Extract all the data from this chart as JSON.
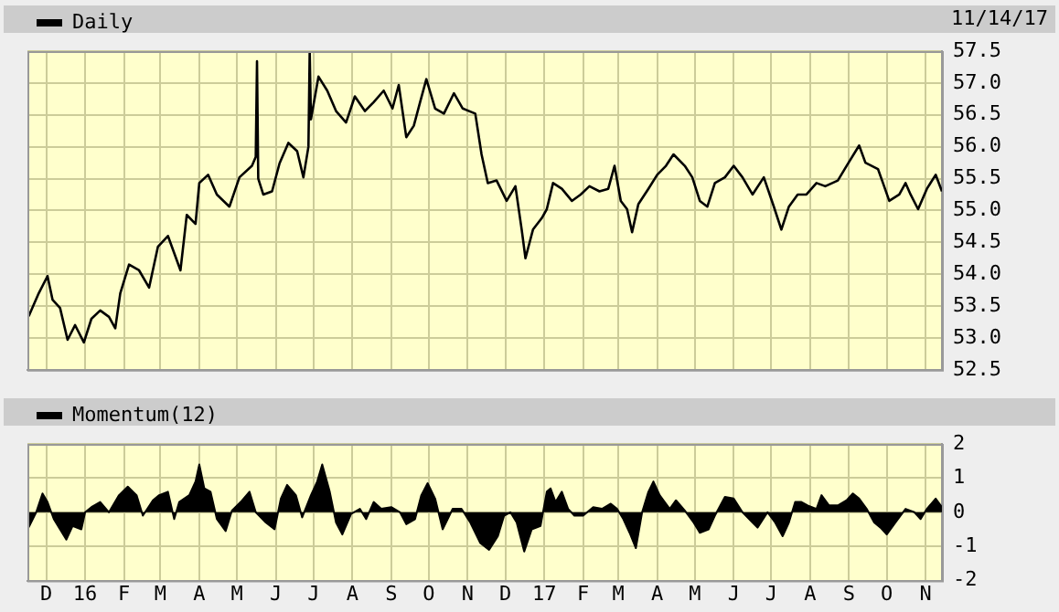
{
  "chart_data": [
    {
      "type": "line",
      "legend": "top left",
      "grid": true,
      "tick_labels": "y",
      "annotations": [
        "11/14/17"
      ],
      "xlim": [
        "2015-11-16",
        "2017-11-14"
      ],
      "xticks": [
        {
          "value": "2015-12-01",
          "label": null
        },
        {
          "value": "2016-01-01",
          "label": null
        },
        {
          "value": "2016-02-01",
          "label": null
        },
        {
          "value": "2016-03-01",
          "label": null
        },
        {
          "value": "2016-04-01",
          "label": null
        },
        {
          "value": "2016-05-01",
          "label": null
        },
        {
          "value": "2016-06-01",
          "label": null
        },
        {
          "value": "2016-07-01",
          "label": null
        },
        {
          "value": "2016-08-01",
          "label": null
        },
        {
          "value": "2016-09-01",
          "label": null
        },
        {
          "value": "2016-10-01",
          "label": null
        },
        {
          "value": "2016-11-01",
          "label": null
        },
        {
          "value": "2016-12-01",
          "label": null
        },
        {
          "value": "2017-01-01",
          "label": null
        },
        {
          "value": "2017-02-01",
          "label": null
        },
        {
          "value": "2017-03-01",
          "label": null
        },
        {
          "value": "2017-04-01",
          "label": null
        },
        {
          "value": "2017-05-01",
          "label": null
        },
        {
          "value": "2017-06-01",
          "label": null
        },
        {
          "value": "2017-07-01",
          "label": null
        },
        {
          "value": "2017-08-01",
          "label": null
        },
        {
          "value": "2017-09-01",
          "label": null
        },
        {
          "value": "2017-10-01",
          "label": null
        },
        {
          "value": "2017-11-01",
          "label": null
        }
      ],
      "ylim": [
        52.5,
        57.5
      ],
      "yticks": [
        52.5,
        {
          "value": 53,
          "label": "53.0"
        },
        53.5,
        {
          "value": 54,
          "label": "54.0"
        },
        54.5,
        {
          "value": 55,
          "label": "55.0"
        },
        55.5,
        {
          "value": 56,
          "label": "56.0"
        },
        56.5,
        {
          "value": 57,
          "label": "57.0"
        },
        57.5
      ],
      "series": [
        {
          "name": "Daily",
          "color": "#000000",
          "x": [
            "2015-11-17",
            "2015-11-25",
            "2015-12-02",
            "2015-12-06",
            "2015-12-12",
            "2015-12-18",
            "2015-12-24",
            "2015-12-31",
            "2016-01-06",
            "2016-01-13",
            "2016-01-20",
            "2016-01-25",
            "2016-01-29",
            "2016-02-05",
            "2016-02-13",
            "2016-02-21",
            "2016-02-28",
            "2016-03-07",
            "2016-03-17",
            "2016-03-22",
            "2016-03-29",
            "2016-04-01",
            "2016-04-08",
            "2016-04-15",
            "2016-04-25",
            "2016-05-03",
            "2016-05-13",
            "2016-05-16",
            "2016-05-17",
            "2016-05-18",
            "2016-05-22",
            "2016-05-29",
            "2016-06-04",
            "2016-06-11",
            "2016-06-18",
            "2016-06-23",
            "2016-06-27",
            "2016-06-28",
            "2016-06-29",
            "2016-07-05",
            "2016-07-12",
            "2016-07-19",
            "2016-07-27",
            "2016-08-03",
            "2016-08-11",
            "2016-08-18",
            "2016-08-26",
            "2016-09-02",
            "2016-09-07",
            "2016-09-13",
            "2016-09-19",
            "2016-09-24",
            "2016-09-29",
            "2016-10-06",
            "2016-10-13",
            "2016-10-21",
            "2016-10-28",
            "2016-11-07",
            "2016-11-12",
            "2016-11-17",
            "2016-11-24",
            "2016-12-02",
            "2016-12-09",
            "2016-12-14",
            "2016-12-17",
            "2016-12-23",
            "2016-12-30",
            "2017-01-03",
            "2017-01-08",
            "2017-01-15",
            "2017-01-23",
            "2017-01-30",
            "2017-02-06",
            "2017-02-14",
            "2017-02-21",
            "2017-02-26",
            "2017-03-03",
            "2017-03-08",
            "2017-03-12",
            "2017-03-17",
            "2017-03-25",
            "2017-04-01",
            "2017-04-08",
            "2017-04-14",
            "2017-04-23",
            "2017-04-29",
            "2017-05-05",
            "2017-05-11",
            "2017-05-17",
            "2017-05-25",
            "2017-06-01",
            "2017-06-08",
            "2017-06-16",
            "2017-06-25",
            "2017-07-03",
            "2017-07-09",
            "2017-07-15",
            "2017-07-22",
            "2017-07-29",
            "2017-08-06",
            "2017-08-13",
            "2017-08-23",
            "2017-08-30",
            "2017-09-09",
            "2017-09-14",
            "2017-09-24",
            "2017-09-28",
            "2017-10-03",
            "2017-10-11",
            "2017-10-16",
            "2017-10-20",
            "2017-10-26",
            "2017-11-02",
            "2017-11-09",
            "2017-11-14"
          ],
          "values": [
            53.34,
            53.7,
            53.97,
            53.6,
            53.47,
            52.97,
            53.2,
            52.93,
            53.3,
            53.43,
            53.33,
            53.15,
            53.7,
            54.15,
            54.06,
            53.79,
            54.43,
            54.6,
            54.06,
            54.93,
            54.79,
            55.43,
            55.56,
            55.25,
            55.06,
            55.52,
            55.7,
            55.84,
            57.34,
            55.5,
            55.25,
            55.3,
            55.74,
            56.06,
            55.93,
            55.52,
            56.0,
            57.5,
            56.43,
            57.1,
            56.88,
            56.56,
            56.38,
            56.79,
            56.56,
            56.7,
            56.88,
            56.6,
            56.97,
            56.15,
            56.33,
            56.7,
            57.06,
            56.6,
            56.52,
            56.84,
            56.6,
            56.52,
            55.88,
            55.43,
            55.47,
            55.15,
            55.38,
            54.7,
            54.25,
            54.7,
            54.88,
            55.02,
            55.43,
            55.34,
            55.15,
            55.25,
            55.38,
            55.3,
            55.34,
            55.7,
            55.15,
            55.02,
            54.66,
            55.1,
            55.34,
            55.56,
            55.7,
            55.88,
            55.7,
            55.52,
            55.15,
            55.06,
            55.43,
            55.52,
            55.7,
            55.52,
            55.25,
            55.52,
            55.06,
            54.7,
            55.06,
            55.25,
            55.25,
            55.43,
            55.38,
            55.47,
            55.7,
            56.02,
            55.75,
            55.65,
            55.43,
            55.15,
            55.25,
            55.43,
            55.25,
            55.02,
            55.34,
            55.56,
            55.3
          ]
        }
      ]
    },
    {
      "type": "area",
      "legend": "top left",
      "grid": true,
      "xlim": [
        "2015-11-16",
        "2017-11-14"
      ],
      "xticks": [
        {
          "value": "2015-12-01",
          "label": "D"
        },
        {
          "value": "2016-01-01",
          "label": "16"
        },
        {
          "value": "2016-02-01",
          "label": "F"
        },
        {
          "value": "2016-03-01",
          "label": "M"
        },
        {
          "value": "2016-04-01",
          "label": "A"
        },
        {
          "value": "2016-05-01",
          "label": "M"
        },
        {
          "value": "2016-06-01",
          "label": "J"
        },
        {
          "value": "2016-07-01",
          "label": "J"
        },
        {
          "value": "2016-08-01",
          "label": "A"
        },
        {
          "value": "2016-09-01",
          "label": "S"
        },
        {
          "value": "2016-10-01",
          "label": "O"
        },
        {
          "value": "2016-11-01",
          "label": "N"
        },
        {
          "value": "2016-12-01",
          "label": "D"
        },
        {
          "value": "2017-01-01",
          "label": "17"
        },
        {
          "value": "2017-02-01",
          "label": "F"
        },
        {
          "value": "2017-03-01",
          "label": "M"
        },
        {
          "value": "2017-04-01",
          "label": "A"
        },
        {
          "value": "2017-05-01",
          "label": "M"
        },
        {
          "value": "2017-06-01",
          "label": "J"
        },
        {
          "value": "2017-07-01",
          "label": "J"
        },
        {
          "value": "2017-08-01",
          "label": "A"
        },
        {
          "value": "2017-09-01",
          "label": "S"
        },
        {
          "value": "2017-10-01",
          "label": "O"
        },
        {
          "value": "2017-11-01",
          "label": "N"
        }
      ],
      "ylim": [
        -2,
        2
      ],
      "yticks": [
        -2,
        -1,
        0,
        1,
        2
      ],
      "series": [
        {
          "name": "Momentum(12)",
          "color": "#000000",
          "x": [
            "2015-11-17",
            "2015-11-23",
            "2015-11-28",
            "2015-12-02",
            "2015-12-07",
            "2015-12-12",
            "2015-12-17",
            "2015-12-22",
            "2015-12-29",
            "2016-01-01",
            "2016-01-06",
            "2016-01-13",
            "2016-01-20",
            "2016-01-28",
            "2016-02-04",
            "2016-02-11",
            "2016-02-16",
            "2016-02-24",
            "2016-02-29",
            "2016-03-07",
            "2016-03-12",
            "2016-03-16",
            "2016-03-24",
            "2016-03-29",
            "2016-04-01",
            "2016-04-05",
            "2016-04-10",
            "2016-04-15",
            "2016-04-22",
            "2016-04-27",
            "2016-05-04",
            "2016-05-11",
            "2016-05-16",
            "2016-05-24",
            "2016-05-31",
            "2016-06-05",
            "2016-06-10",
            "2016-06-17",
            "2016-06-22",
            "2016-06-29",
            "2016-07-04",
            "2016-07-08",
            "2016-07-14",
            "2016-07-19",
            "2016-07-24",
            "2016-07-31",
            "2016-08-07",
            "2016-08-12",
            "2016-08-18",
            "2016-08-24",
            "2016-09-01",
            "2016-09-08",
            "2016-09-13",
            "2016-09-20",
            "2016-09-25",
            "2016-09-30",
            "2016-10-06",
            "2016-10-12",
            "2016-10-20",
            "2016-10-27",
            "2016-11-03",
            "2016-11-11",
            "2016-11-18",
            "2016-11-25",
            "2016-11-30",
            "2016-12-05",
            "2016-12-10",
            "2016-12-16",
            "2016-12-22",
            "2016-12-29",
            "2017-01-03",
            "2017-01-06",
            "2017-01-10",
            "2017-01-15",
            "2017-01-20",
            "2017-01-25",
            "2017-02-01",
            "2017-02-09",
            "2017-02-16",
            "2017-02-23",
            "2017-02-28",
            "2017-03-05",
            "2017-03-10",
            "2017-03-15",
            "2017-03-20",
            "2017-03-25",
            "2017-03-29",
            "2017-04-03",
            "2017-04-11",
            "2017-04-16",
            "2017-04-23",
            "2017-04-30",
            "2017-05-05",
            "2017-05-12",
            "2017-05-17",
            "2017-05-25",
            "2017-06-01",
            "2017-06-08",
            "2017-06-16",
            "2017-06-20",
            "2017-06-28",
            "2017-07-04",
            "2017-07-10",
            "2017-07-15",
            "2017-07-20",
            "2017-07-25",
            "2017-07-30",
            "2017-08-06",
            "2017-08-10",
            "2017-08-16",
            "2017-08-23",
            "2017-08-30",
            "2017-09-04",
            "2017-09-09",
            "2017-09-15",
            "2017-09-21",
            "2017-09-26",
            "2017-10-01",
            "2017-10-08",
            "2017-10-16",
            "2017-10-23",
            "2017-10-28",
            "2017-11-02",
            "2017-11-09",
            "2017-11-14"
          ],
          "values": [
            -0.44,
            0,
            0.55,
            0.3,
            -0.2,
            -0.5,
            -0.8,
            -0.4,
            -0.5,
            0,
            0.15,
            0.3,
            0,
            0.5,
            0.75,
            0.5,
            -0.1,
            0.35,
            0.5,
            0.6,
            -0.2,
            0.3,
            0.5,
            0.9,
            1.4,
            0.7,
            0.6,
            -0.2,
            -0.55,
            0.05,
            0.3,
            0.6,
            0,
            -0.3,
            -0.5,
            0.4,
            0.8,
            0.5,
            -0.15,
            0.5,
            0.9,
            1.4,
            0.6,
            -0.3,
            -0.65,
            -0.05,
            0.1,
            -0.2,
            0.3,
            0.1,
            0.15,
            0,
            -0.35,
            -0.2,
            0.5,
            0.85,
            0.4,
            -0.5,
            0.1,
            0.1,
            -0.3,
            -0.9,
            -1.1,
            -0.7,
            -0.1,
            0,
            -0.3,
            -1.15,
            -0.5,
            -0.4,
            0.6,
            0.7,
            0.3,
            0.6,
            0.1,
            -0.1,
            -0.1,
            0.15,
            0.1,
            0.25,
            0.1,
            -0.2,
            -0.6,
            -1.05,
            0,
            0.6,
            0.9,
            0.5,
            0.1,
            0.35,
            0.05,
            -0.3,
            -0.6,
            -0.5,
            -0.1,
            0.45,
            0.4,
            0,
            -0.3,
            -0.45,
            0,
            -0.3,
            -0.7,
            -0.3,
            0.3,
            0.3,
            0.2,
            0.1,
            0.5,
            0.2,
            0.2,
            0.35,
            0.55,
            0.4,
            0.1,
            -0.3,
            -0.45,
            -0.65,
            -0.3,
            0.1,
            0,
            -0.2,
            0.1,
            0.4,
            0.15
          ]
        }
      ]
    }
  ]
}
